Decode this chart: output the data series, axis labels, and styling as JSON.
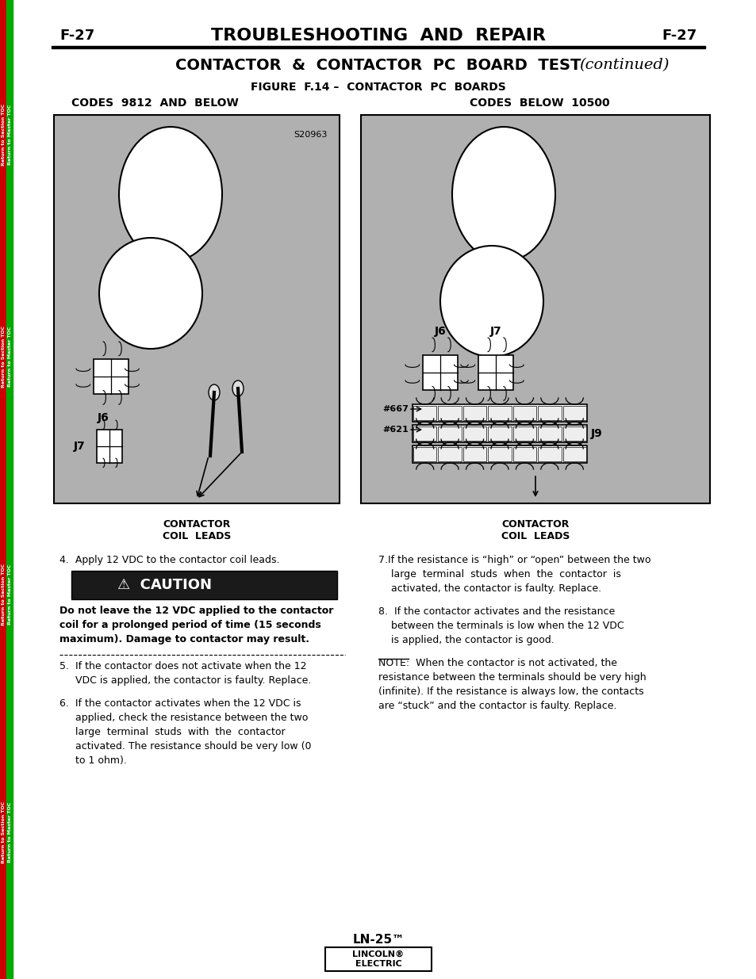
{
  "page_label_left": "F-27",
  "page_label_right": "F-27",
  "main_title": "TROUBLESHOOTING  AND  REPAIR",
  "subtitle": "CONTACTOR  &  CONTACTOR  PC  BOARD  TEST",
  "subtitle_italic": "(continued)",
  "fig_title": "FIGURE  F.14 –  CONTACTOR  PC  BOARDS",
  "left_label": "CODES  9812  AND  BELOW",
  "right_label": "CODES  BELOW  10500",
  "left_code": "S20963",
  "bg_color": "#b0b0b0",
  "white": "#ffffff",
  "black": "#000000",
  "sidebar_red": "#cc0000",
  "sidebar_green": "#00aa00",
  "caution_bg": "#1a1a1a",
  "caution_text": "#ffffff",
  "text_left_col": [
    "4.  Apply 12 VDC to the contactor coil leads.",
    "",
    "",
    "",
    "Do not leave the 12 VDC applied to the contactor",
    "coil for a prolonged period of time (15 seconds",
    "maximum). Damage to contactor may result.",
    "",
    "5.  If the contactor does not activate when the 12",
    "      VDC is applied, the contactor is faulty. Replace.",
    "",
    "6.  If the contactor activates when the 12 VDC is",
    "      applied, check the resistance between the two",
    "      large  terminal  studs  with  the  contactor",
    "      activated. The resistance should be very low (0",
    "      to 1 ohm)."
  ],
  "text_right_col": [
    "7.If the resistance is “high” or “open” between the two",
    "    large  terminal  studs  when  the  contactor  is",
    "    activated, the contactor is faulty. Replace.",
    "",
    "8.  If the contactor activates and the resistance",
    "    between the terminals is low when the 12 VDC",
    "    is applied, the contactor is good."
  ],
  "note_text": "NOTE:  When the contactor is not activated, the resistance between the terminals should be very high (infinite). If the resistance is always low, the contacts are “stuck” and the contactor is faulty. Replace.",
  "footer_model": "LN-25™",
  "sidebar_texts": [
    "Return to Section TOC",
    "Return to Master TOC",
    "Return to Section TOC",
    "Return to Master TOC",
    "Return to Section TOC",
    "Return to Master TOC",
    "Return to Section TOC",
    "Return to Master TOC"
  ]
}
